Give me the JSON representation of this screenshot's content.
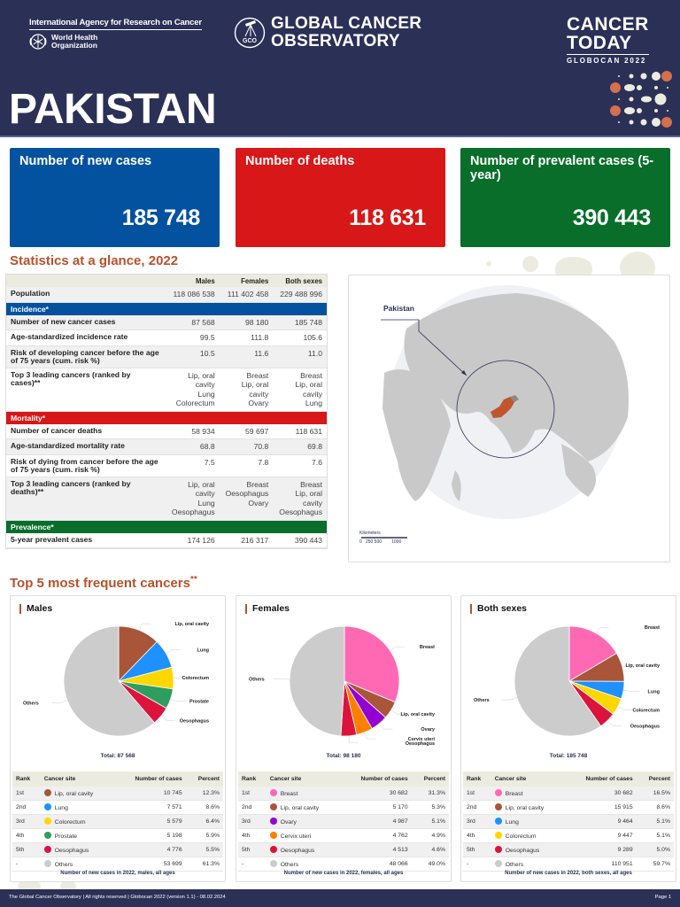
{
  "header": {
    "iarc": "International Agency for Research on Cancer",
    "who_line1": "World Health",
    "who_line2": "Organization",
    "gco_line1": "GLOBAL CANCER",
    "gco_line2": "OBSERVATORY",
    "gco_badge": "GCO",
    "ct_line1": "CANCER",
    "ct_line2": "TODAY",
    "ct_sub": "GLOBOCAN 2022",
    "country": "PAKISTAN"
  },
  "kpis": {
    "new_cases": {
      "label": "Number of new cases",
      "value": "185 748",
      "color": "#0352a0"
    },
    "deaths": {
      "label": "Number of deaths",
      "value": "118 631",
      "color": "#d71718"
    },
    "prevalent": {
      "label": "Number of prevalent cases (5-year)",
      "value": "390 443",
      "color": "#086e2a"
    }
  },
  "stats": {
    "title": "Statistics at a glance, 2022",
    "columns": [
      "",
      "Males",
      "Females",
      "Both sexes"
    ],
    "population": {
      "label": "Population",
      "males": "118 086 538",
      "females": "111 402 458",
      "both": "229 488 996"
    },
    "incidence": {
      "header": "Incidence*",
      "rows": [
        {
          "label": "Number of new cancer cases",
          "males": "87 568",
          "females": "98 180",
          "both": "185 748"
        },
        {
          "label": "Age-standardized incidence rate",
          "males": "99.5",
          "females": "111.8",
          "both": "105.6"
        },
        {
          "label": "Risk of developing cancer before the age of 75 years (cum. risk %)",
          "males": "10.5",
          "females": "11.6",
          "both": "11.0"
        }
      ],
      "top3": {
        "label": "Top 3 leading cancers (ranked by cases)**",
        "males": [
          "Lip, oral",
          "cavity",
          "Lung",
          "Colorectum"
        ],
        "females": [
          "Breast",
          "Lip, oral",
          "cavity",
          "Ovary"
        ],
        "both": [
          "Breast",
          "Lip, oral",
          "cavity",
          "Lung"
        ]
      }
    },
    "mortality": {
      "header": "Mortality*",
      "rows": [
        {
          "label": "Number of cancer deaths",
          "males": "58 934",
          "females": "59 697",
          "both": "118 631"
        },
        {
          "label": "Age-standardized mortality rate",
          "males": "68.8",
          "females": "70.8",
          "both": "69.8"
        },
        {
          "label": "Risk of dying from cancer before the age of 75 years (cum. risk %)",
          "males": "7.5",
          "females": "7.8",
          "both": "7.6"
        }
      ],
      "top3": {
        "label": "Top 3 leading cancers (ranked by deaths)**",
        "males": [
          "Lip, oral",
          "cavity",
          "Lung",
          "Oesophagus"
        ],
        "females": [
          "Breast",
          "Oesophagus",
          "Ovary",
          ""
        ],
        "both": [
          "Breast",
          "Lip, oral",
          "cavity",
          "Oesophagus"
        ]
      }
    },
    "prevalence": {
      "header": "Prevalence*",
      "row": {
        "label": "5-year prevalent cases",
        "males": "174 126",
        "females": "216 317",
        "both": "390 443"
      }
    }
  },
  "map": {
    "label": "Pakistan",
    "scale_title": "Kilometers",
    "scale_ticks": "0   250 500        1000",
    "highlight_color": "#c0552e"
  },
  "top5": {
    "title": "Top 5 most frequent cancers",
    "title_mark": "**",
    "table_headers": {
      "rank": "Rank",
      "site": "Cancer site",
      "cases": "Number of cases",
      "percent": "Percent"
    }
  },
  "chart_data": [
    {
      "type": "pie",
      "title": "Males",
      "total_label": "Total: 87 568",
      "caption": "Number of new cases in 2022, males, all ages",
      "categories": [
        "Lip, oral cavity",
        "Lung",
        "Colorectum",
        "Prostate",
        "Oesophagus",
        "Others"
      ],
      "ranks": [
        "1st",
        "2nd",
        "3rd",
        "4th",
        "5th",
        "-"
      ],
      "values": [
        10745,
        7571,
        5579,
        5198,
        4776,
        53699
      ],
      "values_display": [
        "10 745",
        "7 571",
        "5 579",
        "5 198",
        "4 776",
        "53 699"
      ],
      "percent": [
        "12.3%",
        "8.6%",
        "6.4%",
        "5.9%",
        "5.5%",
        "61.3%"
      ],
      "colors": [
        "#a8553a",
        "#1e90ff",
        "#ffd700",
        "#2e9e5e",
        "#dc143c",
        "#cccccc"
      ]
    },
    {
      "type": "pie",
      "title": "Females",
      "total_label": "Total: 98 180",
      "caption": "Number of new cases in 2022, females, all ages",
      "categories": [
        "Breast",
        "Lip, oral cavity",
        "Ovary",
        "Cervix uteri",
        "Oesophagus",
        "Others"
      ],
      "ranks": [
        "1st",
        "2nd",
        "3rd",
        "4th",
        "5th",
        "-"
      ],
      "values": [
        30682,
        5170,
        4987,
        4762,
        4513,
        48066
      ],
      "values_display": [
        "30 682",
        "5 170",
        "4 987",
        "4 762",
        "4 513",
        "48 066"
      ],
      "percent": [
        "31.3%",
        "5.3%",
        "5.1%",
        "4.9%",
        "4.6%",
        "49.0%"
      ],
      "colors": [
        "#ff69b4",
        "#a8553a",
        "#9400d3",
        "#ff7f00",
        "#dc143c",
        "#cccccc"
      ]
    },
    {
      "type": "pie",
      "title": "Both sexes",
      "total_label": "Total: 185 748",
      "caption": "Number of new cases in 2022, both sexes, all ages",
      "categories": [
        "Breast",
        "Lip, oral cavity",
        "Lung",
        "Colorectum",
        "Oesophagus",
        "Others"
      ],
      "ranks": [
        "1st",
        "2nd",
        "3rd",
        "4th",
        "5th",
        "-"
      ],
      "values": [
        30682,
        15915,
        9464,
        9447,
        9289,
        110951
      ],
      "values_display": [
        "30 682",
        "15 915",
        "9 464",
        "9 447",
        "9 289",
        "110 951"
      ],
      "percent": [
        "16.5%",
        "8.6%",
        "5.1%",
        "5.1%",
        "5.0%",
        "59.7%"
      ],
      "colors": [
        "#ff69b4",
        "#a8553a",
        "#1e90ff",
        "#ffd700",
        "#dc143c",
        "#cccccc"
      ]
    }
  ],
  "footer": {
    "left": "The Global Cancer Observatory | All rights reserved | Globocan 2022 (version 1.1) - 08.02.2024",
    "right": "Page 1"
  }
}
